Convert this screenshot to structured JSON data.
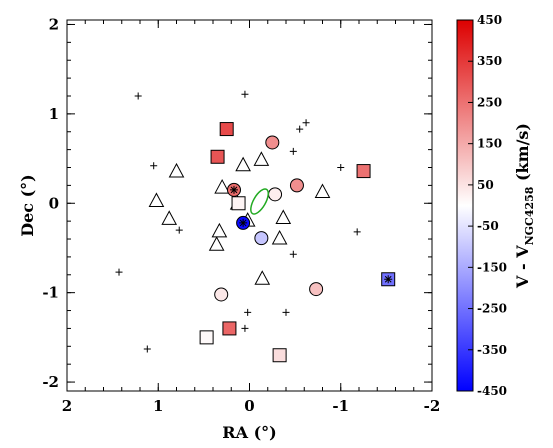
{
  "chart_data": {
    "type": "scatter",
    "xlabel": "RA (°)",
    "ylabel": "Dec (°)",
    "xlim": [
      2,
      -2
    ],
    "ylim": [
      -2.1,
      2.05
    ],
    "xticks": [
      "2",
      "1",
      "0",
      "-1",
      "-2"
    ],
    "yticks": [
      "2",
      "1",
      "0",
      "-1",
      "-2"
    ],
    "grid": false,
    "colorbar": {
      "label_main": "V - V",
      "label_sub": "NGC4258",
      "label_unit": " (km/s)",
      "range": [
        -450,
        450
      ],
      "ticks": [
        "450",
        "350",
        "250",
        "150",
        "50",
        "-50",
        "-150",
        "-250",
        "-350",
        "-450"
      ],
      "colors": [
        "#0000ff",
        "#ffffff",
        "#dd0000"
      ]
    },
    "series": [
      {
        "marker": "plus",
        "points": [
          [
            1.22,
            1.2
          ],
          [
            0.05,
            1.22
          ],
          [
            -0.55,
            0.83
          ],
          [
            -0.62,
            0.9
          ],
          [
            -0.48,
            0.58
          ],
          [
            -1.0,
            0.4
          ],
          [
            1.05,
            0.42
          ],
          [
            0.77,
            -0.3
          ],
          [
            -1.18,
            -0.32
          ],
          [
            -0.48,
            -0.57
          ],
          [
            1.43,
            -0.77
          ],
          [
            0.02,
            -1.22
          ],
          [
            -0.4,
            -1.22
          ],
          [
            0.05,
            -1.4
          ],
          [
            1.12,
            -1.63
          ]
        ]
      },
      {
        "marker": "triangle",
        "points": [
          [
            0.8,
            0.35
          ],
          [
            1.02,
            0.02
          ],
          [
            0.88,
            -0.18
          ],
          [
            -0.13,
            0.48
          ],
          [
            0.07,
            0.42
          ],
          [
            -0.8,
            0.12
          ],
          [
            0.3,
            0.17
          ],
          [
            0.13,
            -0.01
          ],
          [
            0.33,
            -0.32
          ],
          [
            0.36,
            -0.47
          ],
          [
            0.02,
            -0.2
          ],
          [
            -0.37,
            -0.17
          ],
          [
            -0.33,
            -0.4
          ],
          [
            -0.14,
            -0.85
          ]
        ]
      },
      {
        "marker": "square",
        "points": [
          {
            "x": 0.25,
            "y": 0.83,
            "v": 320
          },
          {
            "x": 0.35,
            "y": 0.52,
            "v": 300
          },
          {
            "x": -1.25,
            "y": 0.36,
            "v": 250
          },
          {
            "x": 0.22,
            "y": -1.4,
            "v": 270
          },
          {
            "x": 0.47,
            "y": -1.5,
            "v": 10
          },
          {
            "x": -0.33,
            "y": -1.7,
            "v": 60
          },
          {
            "x": 0.12,
            "y": 0.0,
            "v": 20
          },
          {
            "x": -1.52,
            "y": -0.85,
            "v": -250,
            "star": true
          }
        ]
      },
      {
        "marker": "circle",
        "points": [
          {
            "x": 0.17,
            "y": 0.15,
            "v": 260,
            "star": true
          },
          {
            "x": -0.25,
            "y": 0.68,
            "v": 200
          },
          {
            "x": -0.52,
            "y": 0.2,
            "v": 200
          },
          {
            "x": -0.28,
            "y": 0.1,
            "v": 30
          },
          {
            "x": 0.07,
            "y": -0.22,
            "v": -430,
            "star": true
          },
          {
            "x": -0.13,
            "y": -0.39,
            "v": -100
          },
          {
            "x": 0.31,
            "y": -1.02,
            "v": 40
          },
          {
            "x": -0.73,
            "y": -0.96,
            "v": 110
          }
        ]
      }
    ],
    "ellipse": {
      "x": -0.11,
      "y": 0.02,
      "color": "#22aa22"
    }
  }
}
